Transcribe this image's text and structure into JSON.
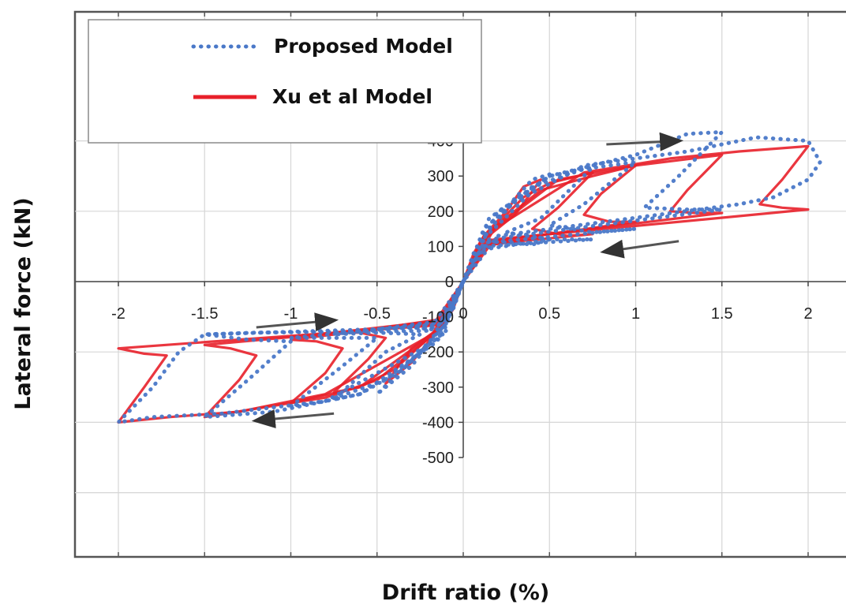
{
  "chart_data": {
    "type": "line",
    "xlabel": "Drift ratio (%)",
    "ylabel": "Lateral force (kN)",
    "xlim": [
      -2.2,
      2.2
    ],
    "ylim": [
      -750,
      550
    ],
    "x_ticks": [
      -2,
      -1.5,
      -1,
      -0.5,
      0,
      0.5,
      1,
      1.5,
      2
    ],
    "x_tick_labels": [
      "-2",
      "-1.5",
      "-1",
      "-0.5",
      "0",
      "0.5",
      "1",
      "1.5",
      "2"
    ],
    "y_ticks": [
      400,
      300,
      200,
      100,
      0,
      -100,
      -200,
      -300,
      -400,
      -500
    ],
    "y_tick_labels": [
      "400",
      "300",
      "200",
      "100",
      "0",
      "-100",
      "-200",
      "-300",
      "-400",
      "-500"
    ],
    "grid": true,
    "legend_position": "top-left",
    "series": [
      {
        "name": "Proposed Model",
        "style": "dotted",
        "color": "#4a78c8",
        "loops": [
          [
            [
              0,
              0
            ],
            [
              0.06,
              80
            ],
            [
              0.12,
              130
            ],
            [
              0.25,
              210
            ],
            [
              0.4,
              290
            ],
            [
              0.5,
              305
            ],
            [
              0.2,
              160
            ],
            [
              0.1,
              115
            ],
            [
              0.3,
              110
            ],
            [
              0.4,
              105
            ],
            [
              0.5,
              120
            ],
            [
              0.1,
              90
            ],
            [
              0,
              0
            ],
            [
              -0.06,
              -80
            ],
            [
              -0.12,
              -130
            ],
            [
              -0.3,
              -240
            ],
            [
              -0.45,
              -300
            ],
            [
              -0.5,
              -320
            ],
            [
              -0.25,
              -200
            ],
            [
              -0.1,
              -140
            ],
            [
              -0.3,
              -130
            ],
            [
              -0.5,
              -135
            ],
            [
              -0.1,
              -110
            ],
            [
              0,
              0
            ]
          ],
          [
            [
              0,
              0
            ],
            [
              0.1,
              120
            ],
            [
              0.3,
              230
            ],
            [
              0.5,
              300
            ],
            [
              0.75,
              325
            ],
            [
              0.45,
              180
            ],
            [
              0.25,
              140
            ],
            [
              0.5,
              120
            ],
            [
              0.75,
              120
            ],
            [
              0.1,
              100
            ],
            [
              0,
              0
            ],
            [
              -0.1,
              -120
            ],
            [
              -0.35,
              -250
            ],
            [
              -0.6,
              -320
            ],
            [
              -0.75,
              -335
            ],
            [
              -0.45,
              -200
            ],
            [
              -0.25,
              -150
            ],
            [
              -0.5,
              -145
            ],
            [
              -0.75,
              -150
            ],
            [
              -0.1,
              -115
            ],
            [
              0,
              0
            ]
          ],
          [
            [
              0,
              0
            ],
            [
              0.12,
              150
            ],
            [
              0.4,
              270
            ],
            [
              0.7,
              320
            ],
            [
              1.0,
              340
            ],
            [
              0.7,
              220
            ],
            [
              0.5,
              160
            ],
            [
              0.75,
              140
            ],
            [
              1.0,
              150
            ],
            [
              0.12,
              110
            ],
            [
              0,
              0
            ],
            [
              -0.12,
              -150
            ],
            [
              -0.45,
              -280
            ],
            [
              -0.8,
              -340
            ],
            [
              -1.0,
              -355
            ],
            [
              -0.7,
              -240
            ],
            [
              -0.5,
              -160
            ],
            [
              -0.75,
              -160
            ],
            [
              -1.0,
              -160
            ],
            [
              -0.12,
              -120
            ],
            [
              0,
              0
            ]
          ],
          [
            [
              0,
              0
            ],
            [
              0.15,
              180
            ],
            [
              0.5,
              300
            ],
            [
              1.0,
              360
            ],
            [
              1.3,
              420
            ],
            [
              1.5,
              425
            ],
            [
              1.25,
              300
            ],
            [
              1.05,
              210
            ],
            [
              1.3,
              205
            ],
            [
              1.5,
              205
            ],
            [
              0.15,
              120
            ],
            [
              0,
              0
            ],
            [
              -0.15,
              -170
            ],
            [
              -0.6,
              -320
            ],
            [
              -1.1,
              -370
            ],
            [
              -1.5,
              -385
            ],
            [
              -1.25,
              -280
            ],
            [
              -1.0,
              -170
            ],
            [
              -1.25,
              -165
            ],
            [
              -1.5,
              -150
            ],
            [
              -0.15,
              -130
            ],
            [
              0,
              0
            ]
          ],
          [
            [
              0,
              0
            ],
            [
              0.2,
              200
            ],
            [
              0.7,
              330
            ],
            [
              1.3,
              370
            ],
            [
              1.7,
              410
            ],
            [
              2.0,
              400
            ],
            [
              2.07,
              340
            ],
            [
              2.0,
              290
            ],
            [
              1.8,
              240
            ],
            [
              1.6,
              220
            ],
            [
              0.2,
              130
            ],
            [
              0,
              0
            ],
            [
              -0.2,
              -180
            ],
            [
              -0.8,
              -340
            ],
            [
              -1.4,
              -375
            ],
            [
              -1.8,
              -385
            ],
            [
              -2.0,
              -400
            ],
            [
              -1.8,
              -300
            ],
            [
              -1.65,
              -200
            ],
            [
              -1.5,
              -150
            ],
            [
              -1.2,
              -145
            ],
            [
              -0.2,
              -140
            ],
            [
              0,
              0
            ]
          ]
        ]
      },
      {
        "name": "Xu et al Model",
        "style": "solid",
        "color": "#e8202a",
        "loops": [
          [
            [
              0,
              0
            ],
            [
              0.06,
              80
            ],
            [
              0.12,
              130
            ],
            [
              0.25,
              200
            ],
            [
              0.35,
              270
            ],
            [
              0.45,
              290
            ],
            [
              0.3,
              190
            ],
            [
              0.12,
              120
            ],
            [
              0.3,
              115
            ],
            [
              0.45,
              125
            ],
            [
              0.1,
              100
            ],
            [
              0,
              0
            ],
            [
              -0.06,
              -80
            ],
            [
              -0.15,
              -140
            ],
            [
              -0.3,
              -230
            ],
            [
              -0.45,
              -290
            ],
            [
              -0.3,
              -190
            ],
            [
              -0.12,
              -125
            ],
            [
              -0.3,
              -120
            ],
            [
              -0.45,
              -130
            ],
            [
              -0.1,
              -105
            ],
            [
              0,
              0
            ]
          ],
          [
            [
              0,
              0
            ],
            [
              0.1,
              115
            ],
            [
              0.35,
              240
            ],
            [
              0.5,
              280
            ],
            [
              0.75,
              310
            ],
            [
              0.55,
              210
            ],
            [
              0.4,
              150
            ],
            [
              0.6,
              130
            ],
            [
              0.75,
              135
            ],
            [
              0.12,
              105
            ],
            [
              0,
              0
            ],
            [
              -0.1,
              -115
            ],
            [
              -0.4,
              -250
            ],
            [
              -0.6,
              -300
            ],
            [
              -0.75,
              -315
            ],
            [
              -0.55,
              -220
            ],
            [
              -0.45,
              -160
            ],
            [
              -0.6,
              -145
            ],
            [
              -0.75,
              -145
            ],
            [
              -0.12,
              -110
            ],
            [
              0,
              0
            ]
          ],
          [
            [
              0,
              0
            ],
            [
              0.12,
              130
            ],
            [
              0.45,
              260
            ],
            [
              0.75,
              300
            ],
            [
              1.0,
              330
            ],
            [
              0.8,
              250
            ],
            [
              0.7,
              190
            ],
            [
              0.85,
              170
            ],
            [
              1.0,
              170
            ],
            [
              0.15,
              110
            ],
            [
              0,
              0
            ],
            [
              -0.12,
              -130
            ],
            [
              -0.5,
              -280
            ],
            [
              -0.8,
              -330
            ],
            [
              -1.0,
              -345
            ],
            [
              -0.8,
              -260
            ],
            [
              -0.7,
              -190
            ],
            [
              -0.85,
              -170
            ],
            [
              -1.0,
              -165
            ],
            [
              -0.15,
              -115
            ],
            [
              0,
              0
            ]
          ],
          [
            [
              0,
              0
            ],
            [
              0.15,
              140
            ],
            [
              0.55,
              290
            ],
            [
              1.0,
              330
            ],
            [
              1.5,
              360
            ],
            [
              1.3,
              260
            ],
            [
              1.2,
              200
            ],
            [
              1.35,
              195
            ],
            [
              1.5,
              195
            ],
            [
              0.15,
              115
            ],
            [
              0,
              0
            ],
            [
              -0.15,
              -140
            ],
            [
              -0.6,
              -300
            ],
            [
              -1.0,
              -345
            ],
            [
              -1.5,
              -385
            ],
            [
              -1.3,
              -280
            ],
            [
              -1.2,
              -210
            ],
            [
              -1.35,
              -190
            ],
            [
              -1.5,
              -180
            ],
            [
              -0.15,
              -120
            ],
            [
              0,
              0
            ]
          ],
          [
            [
              0,
              0
            ],
            [
              0.18,
              150
            ],
            [
              0.7,
              310
            ],
            [
              1.2,
              350
            ],
            [
              1.6,
              370
            ],
            [
              2.0,
              385
            ],
            [
              1.85,
              290
            ],
            [
              1.72,
              220
            ],
            [
              1.85,
              210
            ],
            [
              2.0,
              205
            ],
            [
              0.18,
              120
            ],
            [
              0,
              0
            ],
            [
              -0.18,
              -150
            ],
            [
              -0.8,
              -320
            ],
            [
              -1.3,
              -370
            ],
            [
              -1.7,
              -385
            ],
            [
              -2.0,
              -400
            ],
            [
              -1.85,
              -300
            ],
            [
              -1.72,
              -210
            ],
            [
              -1.85,
              -205
            ],
            [
              -2.0,
              -190
            ],
            [
              -0.18,
              -125
            ],
            [
              0,
              0
            ]
          ]
        ]
      }
    ],
    "annotations": [
      {
        "type": "arrow",
        "from": [
          0.83,
          390
        ],
        "to": [
          1.25,
          400
        ]
      },
      {
        "type": "arrow",
        "from": [
          1.25,
          115
        ],
        "to": [
          0.82,
          85
        ]
      },
      {
        "type": "arrow",
        "from": [
          -1.2,
          -130
        ],
        "to": [
          -0.75,
          -110
        ]
      },
      {
        "type": "arrow",
        "from": [
          -0.75,
          -375
        ],
        "to": [
          -1.2,
          -395
        ]
      }
    ]
  },
  "legend": {
    "items": [
      {
        "label": "Proposed Model",
        "style": "dotted",
        "color": "#4a78c8"
      },
      {
        "label": "Xu et al Model",
        "style": "solid",
        "color": "#e8202a"
      }
    ]
  }
}
